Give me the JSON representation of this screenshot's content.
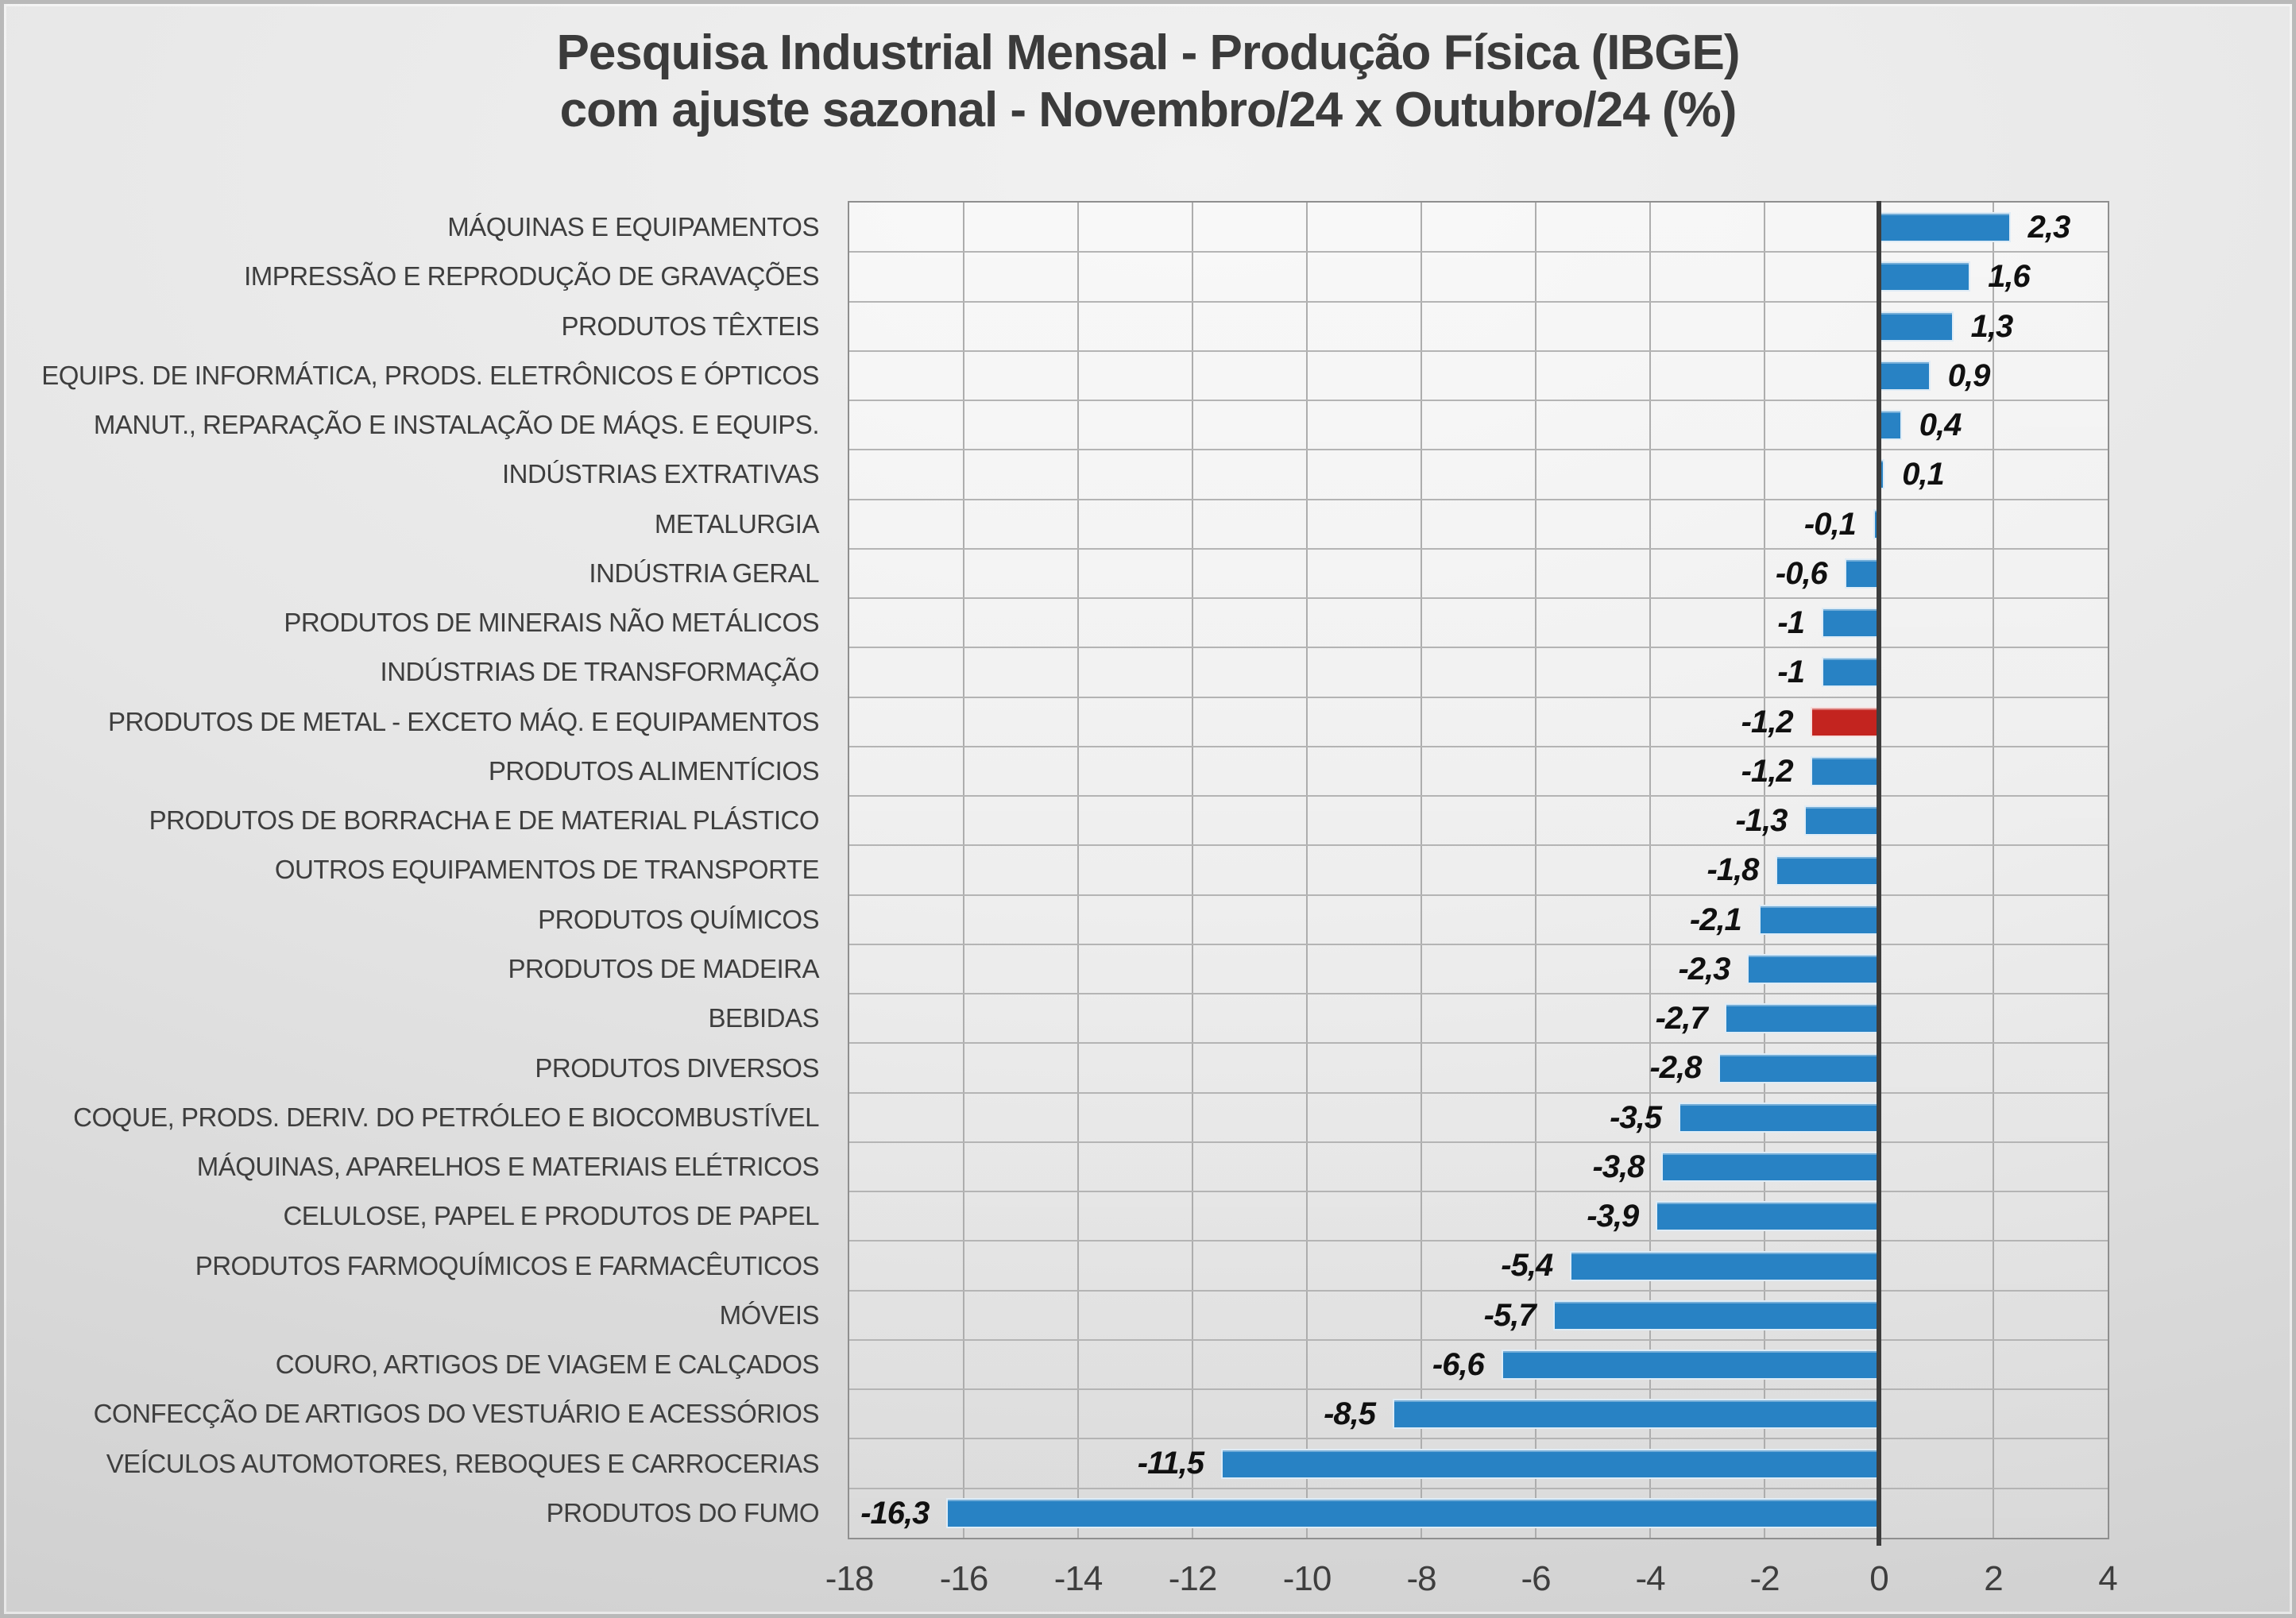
{
  "title": {
    "line1": "Pesquisa Industrial Mensal - Produção Física (IBGE)",
    "line2": "com ajuste sazonal - Novembro/24 x Outubro/24 (%)"
  },
  "colors": {
    "bar_default": "#2882C4",
    "bar_highlight": "#C3241F",
    "title_text": "#3B3B3B",
    "axis_text": "#3E3E3E",
    "value_text": "#101010",
    "gridline": "#ADADAD",
    "plot_border": "#8F8F8F",
    "zero_line": "#3D3D3D"
  },
  "chart_data": {
    "type": "bar",
    "orientation": "horizontal",
    "title": "Pesquisa Industrial Mensal - Produção Física (IBGE) com ajuste sazonal - Novembro/24 x Outubro/24 (%)",
    "categories": [
      "MÁQUINAS E EQUIPAMENTOS",
      "IMPRESSÃO E REPRODUÇÃO DE GRAVAÇÕES",
      "PRODUTOS TÊXTEIS",
      "EQUIPS. DE INFORMÁTICA, PRODS. ELETRÔNICOS E ÓPTICOS",
      "MANUT., REPARAÇÃO E INSTALAÇÃO DE MÁQS. E EQUIPS.",
      "INDÚSTRIAS EXTRATIVAS",
      "METALURGIA",
      "INDÚSTRIA GERAL",
      "PRODUTOS DE MINERAIS NÃO METÁLICOS",
      "INDÚSTRIAS DE TRANSFORMAÇÃO",
      "PRODUTOS DE METAL - EXCETO MÁQ. E EQUIPAMENTOS",
      "PRODUTOS ALIMENTÍCIOS",
      "PRODUTOS DE BORRACHA E DE MATERIAL PLÁSTICO",
      "OUTROS EQUIPAMENTOS DE TRANSPORTE",
      "PRODUTOS QUÍMICOS",
      "PRODUTOS DE MADEIRA",
      "BEBIDAS",
      "PRODUTOS DIVERSOS",
      "COQUE, PRODS. DERIV. DO PETRÓLEO E BIOCOMBUSTÍVEL",
      "MÁQUINAS, APARELHOS E MATERIAIS ELÉTRICOS",
      "CELULOSE, PAPEL E PRODUTOS DE PAPEL",
      "PRODUTOS FARMOQUÍMICOS E FARMACÊUTICOS",
      "MÓVEIS",
      "COURO, ARTIGOS DE VIAGEM E CALÇADOS",
      "CONFECÇÃO DE ARTIGOS DO VESTUÁRIO E ACESSÓRIOS",
      "VEÍCULOS AUTOMOTORES, REBOQUES E CARROCERIAS",
      "PRODUTOS DO FUMO"
    ],
    "values": [
      2.3,
      1.6,
      1.3,
      0.9,
      0.4,
      0.1,
      -0.1,
      -0.6,
      -1,
      -1,
      -1.2,
      -1.2,
      -1.3,
      -1.8,
      -2.1,
      -2.3,
      -2.7,
      -2.8,
      -3.5,
      -3.8,
      -3.9,
      -5.4,
      -5.7,
      -6.6,
      -8.5,
      -11.5,
      -16.3
    ],
    "value_labels": [
      "2,3",
      "1,6",
      "1,3",
      "0,9",
      "0,4",
      "0,1",
      "-0,1",
      "-0,6",
      "-1",
      "-1",
      "-1,2",
      "-1,2",
      "-1,3",
      "-1,8",
      "-2,1",
      "-2,3",
      "-2,7",
      "-2,8",
      "-3,5",
      "-3,8",
      "-3,9",
      "-5,4",
      "-5,7",
      "-6,6",
      "-8,5",
      "-11,5",
      "-16,3"
    ],
    "highlight_index": 10,
    "xlabel": "",
    "ylabel": "",
    "xlim": [
      -18,
      4
    ],
    "xticks": [
      -18,
      -16,
      -14,
      -12,
      -10,
      -8,
      -6,
      -4,
      -2,
      0,
      2,
      4
    ],
    "xtick_labels": [
      "-18",
      "-16",
      "-14",
      "-12",
      "-10",
      "-8",
      "-6",
      "-4",
      "-2",
      "0",
      "2",
      "4"
    ],
    "grid": true,
    "legend": false
  }
}
